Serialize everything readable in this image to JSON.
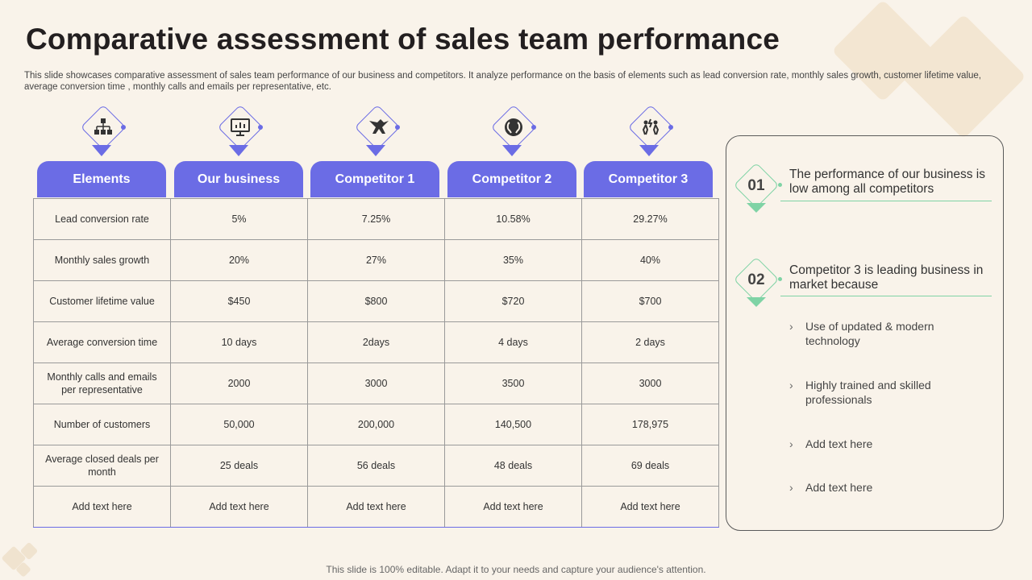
{
  "title": "Comparative assessment of sales team performance",
  "subtitle": "This slide showcases comparative assessment of sales team performance of our business and competitors. It analyze performance on the basis of elements such as lead conversion rate, monthly sales growth, customer lifetime value, average conversion time , monthly calls and emails per representative, etc.",
  "columns": [
    {
      "label": "Elements",
      "icon": "org-chart-icon"
    },
    {
      "label": "Our business",
      "icon": "presentation-screen-icon"
    },
    {
      "label": "Competitor 1",
      "icon": "handshake-icon"
    },
    {
      "label": "Competitor 2",
      "icon": "two-heads-icon"
    },
    {
      "label": "Competitor 3",
      "icon": "people-competing-icon"
    }
  ],
  "rows": [
    [
      "Lead conversion  rate",
      "5%",
      "7.25%",
      "10.58%",
      "29.27%"
    ],
    [
      "Monthly sales growth",
      "20%",
      "27%",
      "35%",
      "40%"
    ],
    [
      "Customer lifetime value",
      "$450",
      "$800",
      "$720",
      "$700"
    ],
    [
      "Average  conversion  time",
      "10 days",
      "2days",
      "4 days",
      "2 days"
    ],
    [
      "Monthly calls and emails per representative",
      "2000",
      "3000",
      "3500",
      "3000"
    ],
    [
      "Number  of customers",
      "50,000",
      "200,000",
      "140,500",
      "178,975"
    ],
    [
      "Average  closed deals per month",
      "25 deals",
      "56 deals",
      "48 deals",
      "69 deals"
    ],
    [
      "Add text here",
      "Add text here",
      "Add text here",
      "Add text here",
      "Add text here"
    ]
  ],
  "panel": {
    "points": [
      {
        "number": "01",
        "text": "The performance of our business is low among all competitors"
      },
      {
        "number": "02",
        "text": "Competitor 3 is leading business in market because"
      }
    ],
    "bullets": [
      "Use of updated & modern technology",
      "Highly trained and skilled professionals",
      "Add text here",
      "Add text here"
    ]
  },
  "footer": "This slide is 100% editable. Adapt it to your needs and capture your audience's attention.",
  "colors": {
    "accent": "#6b6ce5",
    "green": "#7fd3a5",
    "background": "#f9f3ea"
  }
}
